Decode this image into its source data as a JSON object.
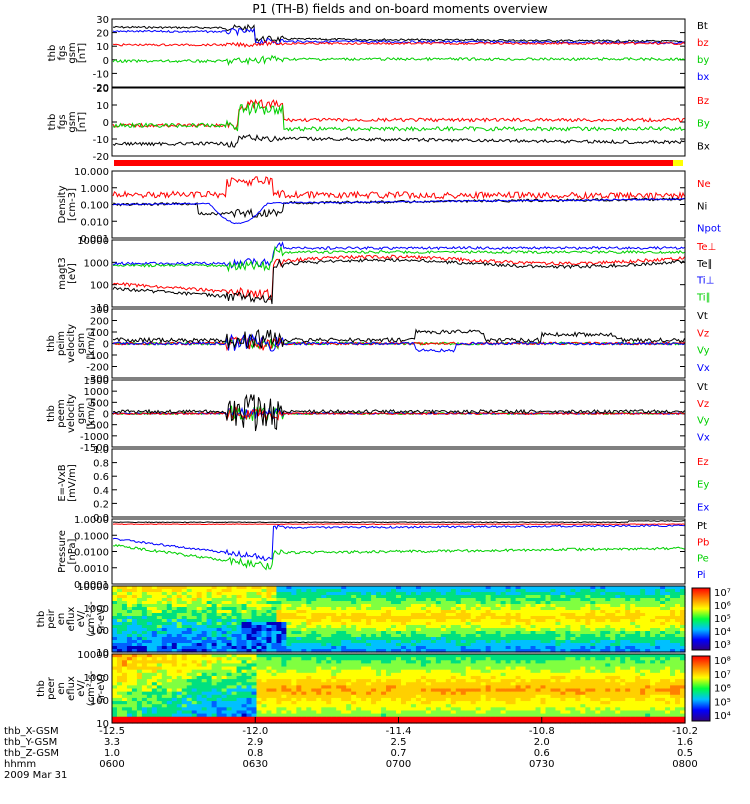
{
  "title": "P1 (TH-B) fields and on-board moments overview",
  "colors": {
    "black": "#000000",
    "red": "#ff0000",
    "green": "#00d000",
    "blue": "#0000ff",
    "yellow": "#ffff00"
  },
  "panels": [
    {
      "id": "fgs-mag",
      "ylabel": [
        "thb",
        "fgs",
        "gsm",
        "[nT]"
      ],
      "yticks": [
        "30",
        "20",
        "10",
        "0",
        "-10",
        "-20"
      ],
      "ylim": [
        -20,
        30
      ],
      "legend": [
        {
          "text": "Bt",
          "color": "black"
        },
        {
          "text": "bz",
          "color": "red"
        },
        {
          "text": "by",
          "color": "green"
        },
        {
          "text": "bx",
          "color": "blue"
        }
      ]
    },
    {
      "id": "fgs-comp",
      "ylabel": [
        "thb",
        "fgs",
        "gsm",
        "[nT]"
      ],
      "yticks": [
        "20",
        "10",
        "0",
        "-10",
        "-20"
      ],
      "ylim": [
        -25,
        20
      ],
      "legend": [
        {
          "text": "Bz",
          "color": "red"
        },
        {
          "text": "By",
          "color": "green"
        },
        {
          "text": "Bx",
          "color": "black"
        }
      ]
    },
    {
      "id": "density",
      "ylabel": [
        "Density",
        "[cm-3]"
      ],
      "yticks": [
        "10.000",
        "1.000",
        "0.100",
        "0.010",
        "0.001"
      ],
      "ylim": [
        0.001,
        10
      ],
      "log": true,
      "legend": [
        {
          "text": "Ne",
          "color": "red"
        },
        {
          "text": "Ni",
          "color": "black"
        },
        {
          "text": "Npot",
          "color": "blue"
        }
      ]
    },
    {
      "id": "temperature",
      "ylabel": [
        "magt3",
        "[eV]"
      ],
      "yticks": [
        "10000",
        "1000",
        "100",
        "10"
      ],
      "ylim": [
        10,
        10000
      ],
      "log": true,
      "legend": [
        {
          "text": "Te⊥",
          "color": "red"
        },
        {
          "text": "Te∥",
          "color": "black"
        },
        {
          "text": "Ti⊥",
          "color": "blue"
        },
        {
          "text": "Ti∥",
          "color": "green"
        }
      ]
    },
    {
      "id": "peim-vel",
      "ylabel": [
        "thb",
        "peim",
        "velocity",
        "gsm",
        "[km/s]"
      ],
      "yticks": [
        "300",
        "200",
        "100",
        "0",
        "-100",
        "-200",
        "-300"
      ],
      "ylim": [
        -300,
        300
      ],
      "legend": [
        {
          "text": "Vt",
          "color": "black"
        },
        {
          "text": "Vz",
          "color": "red"
        },
        {
          "text": "Vy",
          "color": "green"
        },
        {
          "text": "Vx",
          "color": "blue"
        }
      ]
    },
    {
      "id": "peem-vel",
      "ylabel": [
        "thb",
        "peem",
        "velocity",
        "gsm",
        "[km/s]"
      ],
      "yticks": [
        "1500",
        "1000",
        "500",
        "0",
        "-500",
        "-1000",
        "-1500"
      ],
      "ylim": [
        -1500,
        1500
      ],
      "legend": [
        {
          "text": "Vt",
          "color": "black"
        },
        {
          "text": "Vz",
          "color": "red"
        },
        {
          "text": "Vy",
          "color": "green"
        },
        {
          "text": "Vx",
          "color": "blue"
        }
      ]
    },
    {
      "id": "efield",
      "ylabel": [
        "E=-VxB",
        "[mV/m]"
      ],
      "yticks": [
        "1.0",
        "0.8",
        "0.6",
        "0.4",
        "0.2",
        "0.0"
      ],
      "ylim": [
        0,
        1
      ],
      "legend": [
        {
          "text": "Ez",
          "color": "red"
        },
        {
          "text": "Ey",
          "color": "green"
        },
        {
          "text": "Ex",
          "color": "blue"
        }
      ]
    },
    {
      "id": "pressure",
      "ylabel": [
        "Pressure",
        "[nPa]"
      ],
      "yticks": [
        "1.0000",
        "0.1000",
        "0.0100",
        "0.0010",
        "0.0001"
      ],
      "ylim": [
        0.0001,
        1
      ],
      "log": true,
      "legend": [
        {
          "text": "Pt",
          "color": "black"
        },
        {
          "text": "Pb",
          "color": "red"
        },
        {
          "text": "Pe",
          "color": "green"
        },
        {
          "text": "Pi",
          "color": "blue"
        }
      ]
    },
    {
      "id": "peir-spec",
      "ylabel": [
        "thb",
        "peir",
        "en",
        "eflux",
        "eV/",
        "(cm²-s-",
        "sr-eV)"
      ],
      "yticks": [
        "10000",
        "1000",
        "100",
        "10"
      ],
      "colorbar": [
        "10⁷",
        "10⁶",
        "10⁵",
        "10⁴",
        "10³"
      ]
    },
    {
      "id": "peer-spec",
      "ylabel": [
        "thb",
        "peer",
        "en",
        "eflux",
        "eV/",
        "(cm²-s-",
        "sr-eV)"
      ],
      "yticks": [
        "10000",
        "1000",
        "100",
        "10"
      ],
      "colorbar": [
        "10⁸",
        "10⁷",
        "10⁶",
        "10⁵",
        "10⁴"
      ]
    }
  ],
  "xaxis": {
    "rows": [
      {
        "label": "thb_X-GSM",
        "values": [
          "-12.5",
          "-12.0",
          "-11.4",
          "-10.8",
          "-10.2"
        ]
      },
      {
        "label": "thb_Y-GSM",
        "values": [
          "3.3",
          "2.9",
          "2.5",
          "2.0",
          "1.6"
        ]
      },
      {
        "label": "thb_Z-GSM",
        "values": [
          "1.0",
          "0.8",
          "0.7",
          "0.6",
          "0.5"
        ]
      },
      {
        "label": "hhmm",
        "values": [
          "0600",
          "0630",
          "0700",
          "0730",
          "0800"
        ]
      }
    ],
    "date": "2009 Mar 31"
  },
  "chart_data": {
    "type": "line",
    "title": "P1 (TH-B) fields and on-board moments overview",
    "x": [
      "0600",
      "0630",
      "0700",
      "0730",
      "0800"
    ],
    "series": [
      {
        "name": "Bt",
        "values": [
          25,
          15,
          14,
          15,
          18
        ]
      },
      {
        "name": "bz",
        "values": [
          12,
          8,
          7,
          6,
          8
        ]
      },
      {
        "name": "by",
        "values": [
          -5,
          -8,
          -9,
          -7,
          -5
        ]
      },
      {
        "name": "bx",
        "values": [
          20,
          15,
          13,
          14,
          16
        ]
      }
    ]
  }
}
